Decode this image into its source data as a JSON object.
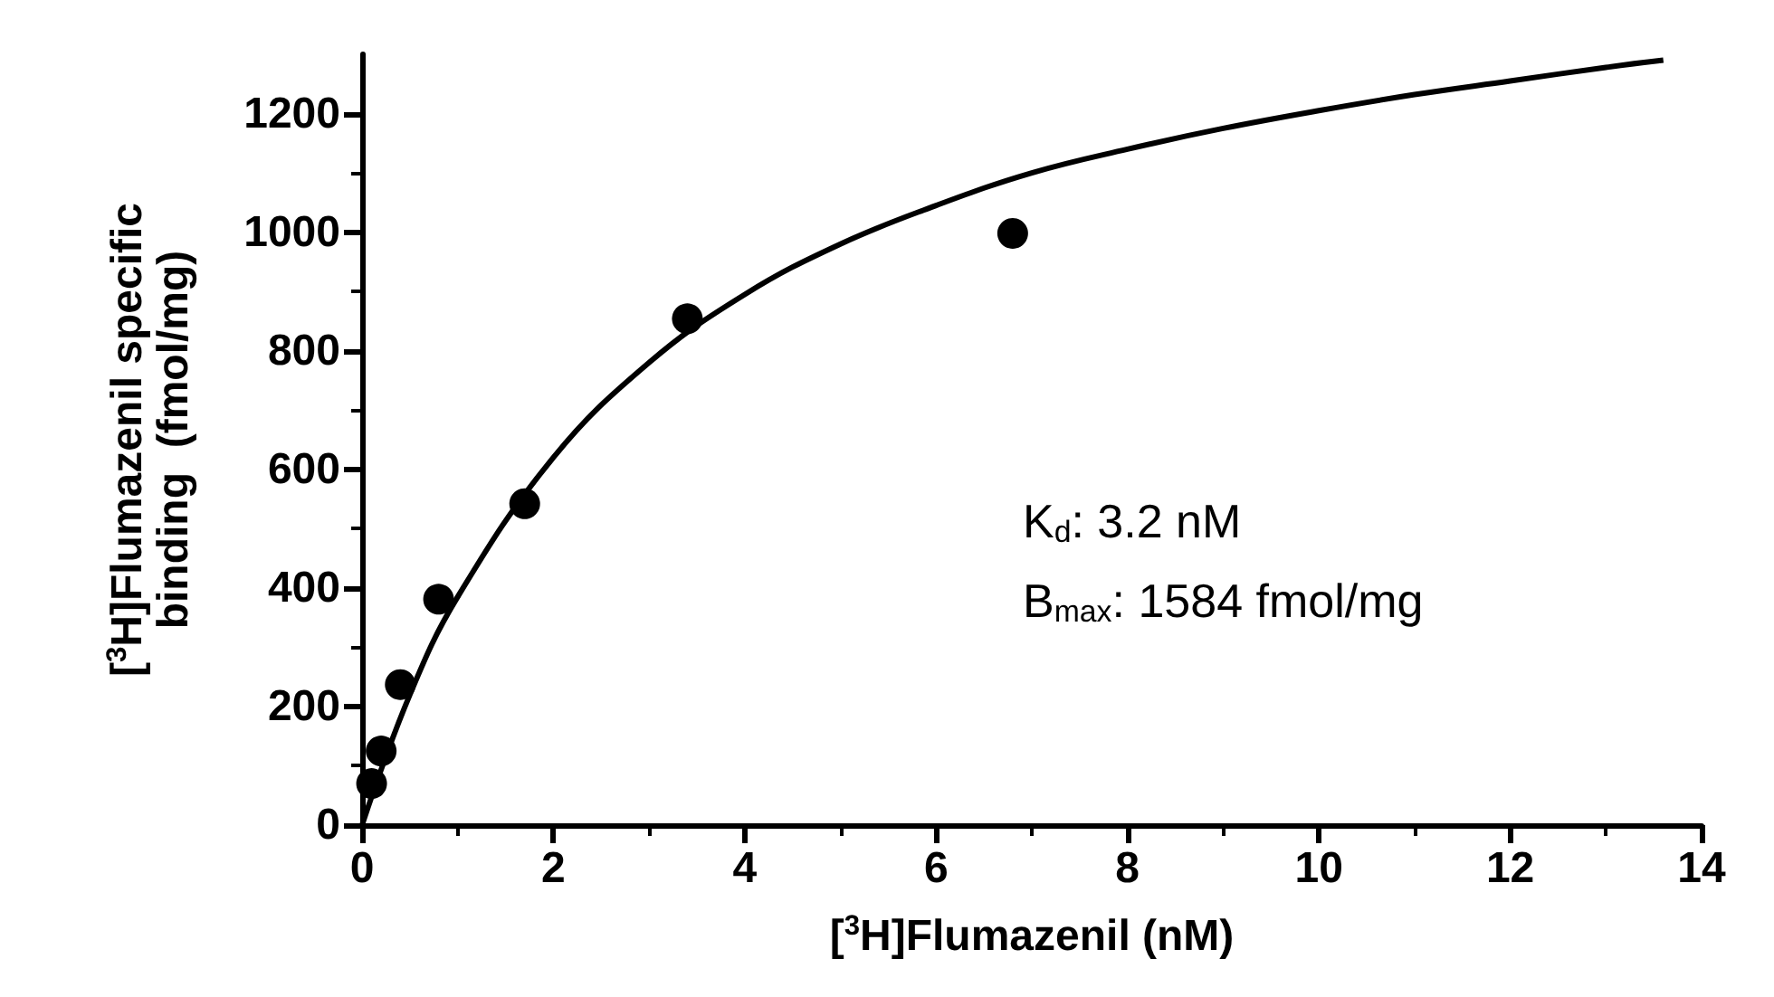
{
  "chart_data": {
    "type": "scatter",
    "xlabel": "[$^{3}$H]Flumazenil (nM)",
    "ylabel": "[$^{3}$H]Flumazenil specific\nbinding  (fmol/mg)",
    "series": [
      {
        "color": "#000000",
        "x": [
          0.1,
          0.2,
          0.4,
          0.8,
          1.7,
          3.4,
          6.8
        ],
        "values": [
          70,
          125,
          237,
          381,
          542,
          854,
          998
        ]
      },
      {
        "type": "line",
        "color": "#000000",
        "marker": "none",
        "x": [
          0,
          0.5,
          1,
          2,
          3,
          4,
          5,
          6,
          7,
          8,
          9,
          10,
          11,
          12,
          13,
          13.6
        ],
        "values": [
          0,
          220,
          385,
          620,
          780,
          895,
          980,
          1045,
          1100,
          1140,
          1175,
          1205,
          1232,
          1255,
          1278,
          1290
        ]
      }
    ],
    "marker": "circle",
    "xlim": [
      0,
      14
    ],
    "xticks": [
      0,
      2,
      4,
      6,
      8,
      10,
      12,
      14
    ],
    "ylim": [
      0,
      1300
    ],
    "yticks": [
      0,
      200,
      400,
      600,
      800,
      1000,
      1200
    ],
    "grid": false,
    "annotations": [
      "K$_{d}$: 3.2 nM",
      "B$_{max}$: 1584 fmol/mg"
    ]
  }
}
